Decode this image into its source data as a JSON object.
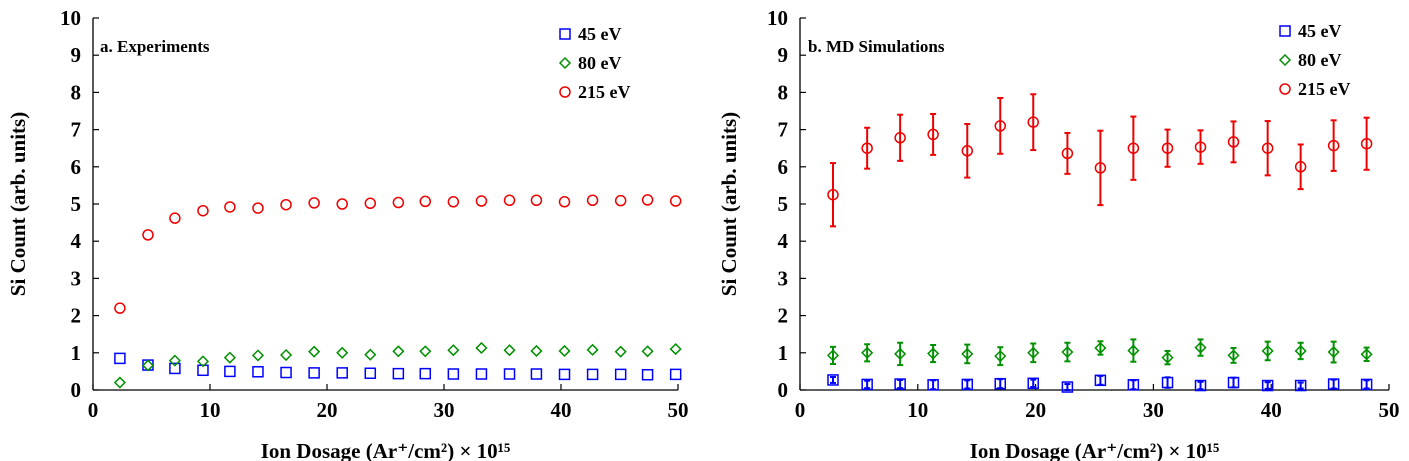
{
  "figure_label": "Ion Dosage",
  "chart_data": [
    {
      "type": "scatter",
      "title": "a. Experiments",
      "xlabel": "Ion Dosage (Ar⁺/cm²) × 10¹⁵",
      "ylabel": "Si Count (arb. units)",
      "xlim": [
        0,
        50
      ],
      "ylim": [
        0,
        10
      ],
      "xticks": [
        0,
        10,
        20,
        30,
        40,
        50
      ],
      "yticks": [
        0,
        1,
        2,
        3,
        4,
        5,
        6,
        7,
        8,
        9,
        10
      ],
      "grid": false,
      "legend": "top-right",
      "series": [
        {
          "name": "45 eV",
          "marker": "square",
          "color": "#0000ff",
          "x": [
            2.3,
            4.7,
            7.0,
            9.4,
            11.7,
            14.1,
            16.5,
            18.9,
            21.3,
            23.7,
            26.1,
            28.4,
            30.8,
            33.2,
            35.6,
            37.9,
            40.3,
            42.7,
            45.1,
            47.4,
            49.8
          ],
          "y": [
            0.85,
            0.67,
            0.58,
            0.53,
            0.5,
            0.49,
            0.47,
            0.46,
            0.46,
            0.45,
            0.44,
            0.44,
            0.43,
            0.43,
            0.43,
            0.43,
            0.42,
            0.42,
            0.42,
            0.41,
            0.42
          ]
        },
        {
          "name": "80 eV",
          "marker": "diamond",
          "color": "#009000",
          "x": [
            2.3,
            4.7,
            7.0,
            9.4,
            11.7,
            14.1,
            16.5,
            18.9,
            21.3,
            23.7,
            26.1,
            28.4,
            30.8,
            33.2,
            35.6,
            37.9,
            40.3,
            42.7,
            45.1,
            47.4,
            49.8
          ],
          "y": [
            0.2,
            0.66,
            0.79,
            0.77,
            0.87,
            0.93,
            0.94,
            1.03,
            1.0,
            0.95,
            1.04,
            1.04,
            1.07,
            1.13,
            1.07,
            1.05,
            1.05,
            1.08,
            1.03,
            1.04,
            1.1
          ]
        },
        {
          "name": "215 eV",
          "marker": "circle",
          "color": "#ee0000",
          "x": [
            2.3,
            4.7,
            7.0,
            9.4,
            11.7,
            14.1,
            16.5,
            18.9,
            21.3,
            23.7,
            26.1,
            28.4,
            30.8,
            33.2,
            35.6,
            37.9,
            40.3,
            42.7,
            45.1,
            47.4,
            49.8
          ],
          "y": [
            2.2,
            4.17,
            4.62,
            4.82,
            4.92,
            4.89,
            4.98,
            5.03,
            5.0,
            5.02,
            5.04,
            5.07,
            5.06,
            5.08,
            5.1,
            5.1,
            5.06,
            5.1,
            5.09,
            5.11,
            5.08
          ]
        }
      ]
    },
    {
      "type": "scatter",
      "title": "b. MD Simulations",
      "xlabel": "Ion Dosage (Ar⁺/cm²) × 10¹⁵",
      "ylabel": "Si Count (arb. units)",
      "xlim": [
        0,
        50
      ],
      "ylim": [
        0,
        10
      ],
      "xticks": [
        0,
        10,
        20,
        30,
        40,
        50
      ],
      "yticks": [
        0,
        1,
        2,
        3,
        4,
        5,
        6,
        7,
        8,
        9,
        10
      ],
      "grid": false,
      "legend": "top-right",
      "series": [
        {
          "name": "45 eV",
          "marker": "square",
          "color": "#0000ff",
          "x": [
            2.8,
            5.7,
            8.5,
            11.3,
            14.2,
            17.0,
            19.8,
            22.7,
            25.5,
            28.3,
            31.2,
            34.0,
            36.8,
            39.7,
            42.5,
            45.3,
            48.1
          ],
          "y": [
            0.27,
            0.15,
            0.16,
            0.14,
            0.15,
            0.17,
            0.18,
            0.08,
            0.26,
            0.14,
            0.2,
            0.12,
            0.2,
            0.12,
            0.12,
            0.16,
            0.15
          ],
          "err": [
            0.08,
            0.1,
            0.11,
            0.12,
            0.11,
            0.12,
            0.1,
            0.08,
            0.12,
            0.12,
            0.14,
            0.1,
            0.13,
            0.09,
            0.08,
            0.12,
            0.11
          ]
        },
        {
          "name": "80 eV",
          "marker": "diamond",
          "color": "#009000",
          "x": [
            2.8,
            5.7,
            8.5,
            11.3,
            14.2,
            17.0,
            19.8,
            22.7,
            25.5,
            28.3,
            31.2,
            34.0,
            36.8,
            39.7,
            42.5,
            45.3,
            48.1
          ],
          "y": [
            0.93,
            1.0,
            0.97,
            0.98,
            0.97,
            0.91,
            1.0,
            1.02,
            1.13,
            1.06,
            0.87,
            1.14,
            0.93,
            1.05,
            1.05,
            1.02,
            0.96
          ],
          "err": [
            0.23,
            0.23,
            0.3,
            0.23,
            0.25,
            0.24,
            0.25,
            0.25,
            0.18,
            0.3,
            0.18,
            0.22,
            0.2,
            0.25,
            0.22,
            0.28,
            0.18
          ]
        },
        {
          "name": "215 eV",
          "marker": "circle",
          "color": "#ee0000",
          "x": [
            2.8,
            5.7,
            8.5,
            11.3,
            14.2,
            17.0,
            19.8,
            22.7,
            25.5,
            28.3,
            31.2,
            34.0,
            36.8,
            39.7,
            42.5,
            45.3,
            48.1
          ],
          "y": [
            5.25,
            6.5,
            6.78,
            6.87,
            6.43,
            7.1,
            7.2,
            6.36,
            5.97,
            6.5,
            6.5,
            6.53,
            6.67,
            6.5,
            6.0,
            6.57,
            6.62
          ],
          "err": [
            0.85,
            0.55,
            0.62,
            0.55,
            0.72,
            0.75,
            0.75,
            0.55,
            1.0,
            0.85,
            0.5,
            0.45,
            0.55,
            0.73,
            0.6,
            0.68,
            0.7
          ]
        }
      ]
    }
  ]
}
